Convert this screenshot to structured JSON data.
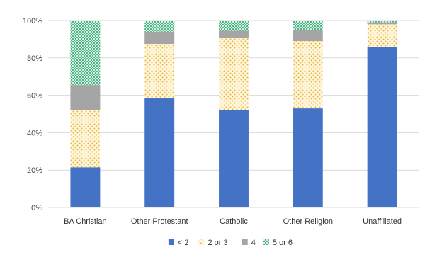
{
  "chart_data": {
    "type": "bar",
    "stacked": true,
    "percent": true,
    "categories": [
      "BA Christian",
      "Other Protestant",
      "Catholic",
      "Other Religion",
      "Unaffiliated"
    ],
    "series": [
      {
        "name": "< 2",
        "values": [
          21.5,
          58.5,
          52.0,
          53.0,
          86.0
        ],
        "color": "#4472C4",
        "pattern": "solid"
      },
      {
        "name": "2 or 3",
        "values": [
          30.5,
          29.0,
          38.5,
          36.0,
          12.0
        ],
        "color": "#FFD966",
        "pattern": "dots"
      },
      {
        "name": "4",
        "values": [
          13.5,
          6.5,
          4.0,
          6.0,
          1.0
        ],
        "color": "#A5A5A5",
        "pattern": "solid"
      },
      {
        "name": "5 or 6",
        "values": [
          34.5,
          6.0,
          5.5,
          5.0,
          1.0
        ],
        "color": "#70C8A0",
        "pattern": "checker"
      }
    ],
    "yticks": [
      "0%",
      "20%",
      "40%",
      "60%",
      "80%",
      "100%"
    ],
    "ylim": [
      0,
      100
    ],
    "grid": true,
    "legend": "bottom-center",
    "title": "",
    "xlabel": "",
    "ylabel": ""
  }
}
